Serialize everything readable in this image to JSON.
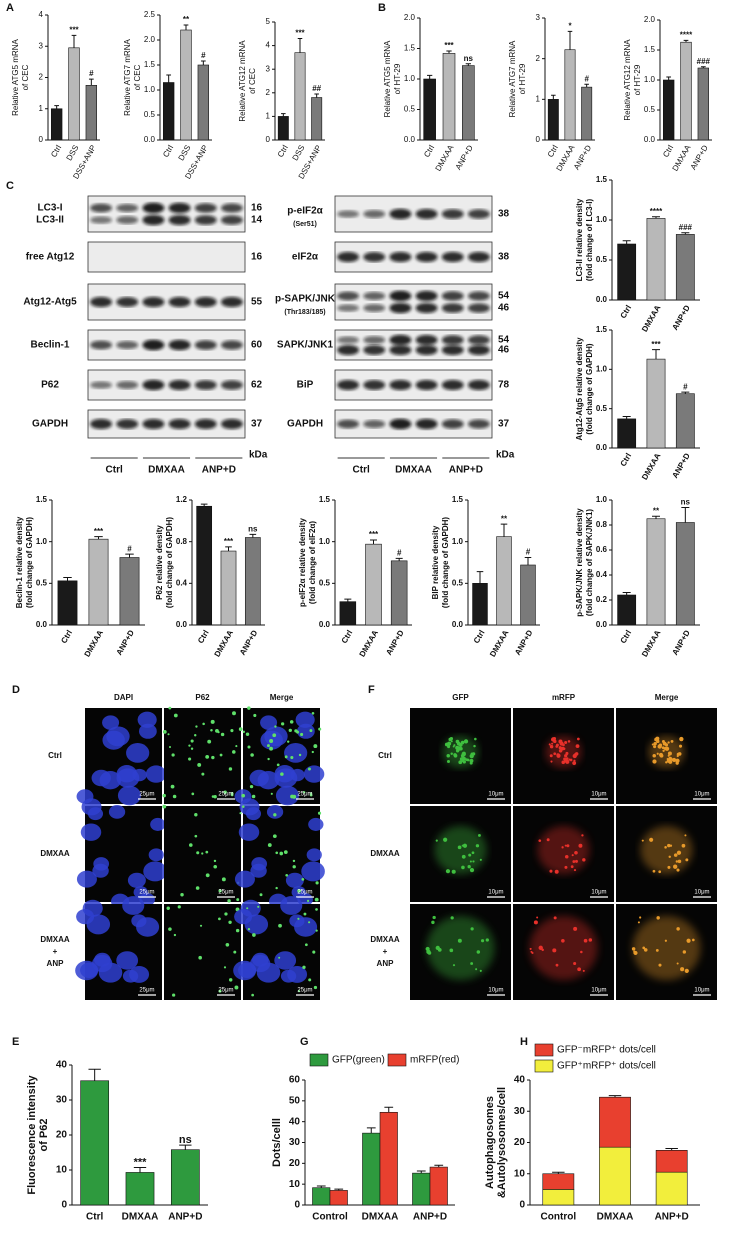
{
  "panel_labels": [
    "A",
    "B",
    "C",
    "D",
    "E",
    "F",
    "G",
    "H"
  ],
  "chart_data": [
    {
      "type": "bar",
      "ylabel": [
        "Relative ATG5 mRNA",
        "of CEC"
      ],
      "categories": [
        "Ctrl",
        "DSS",
        "DSS+ANP"
      ],
      "values": [
        1.0,
        2.95,
        1.75
      ],
      "errors": [
        0.1,
        0.4,
        0.2
      ],
      "significance": [
        null,
        "***",
        "#"
      ],
      "colors": [
        "#1a1a1a",
        "#b8b8b8",
        "#7a7a7a"
      ],
      "ylim": [
        0,
        4
      ],
      "yticks": [
        0,
        1,
        2,
        3,
        4
      ]
    },
    {
      "type": "bar",
      "ylabel": [
        "Relative ATG7 mRNA",
        "of CEC"
      ],
      "categories": [
        "Ctrl",
        "DSS",
        "DSS+ANP"
      ],
      "values": [
        1.15,
        2.2,
        1.5
      ],
      "errors": [
        0.15,
        0.1,
        0.08
      ],
      "significance": [
        null,
        "**",
        "#"
      ],
      "colors": [
        "#1a1a1a",
        "#b8b8b8",
        "#7a7a7a"
      ],
      "ylim": [
        0,
        2.5
      ],
      "yticks": [
        {
          "value": 0,
          "label": "0.0"
        },
        0.5,
        {
          "value": 1,
          "label": "1.0"
        },
        1.5,
        {
          "value": 2,
          "label": "2.0"
        },
        2.5
      ]
    },
    {
      "type": "bar",
      "ylabel": [
        "Relative ATG12 mRNA",
        "of CEC"
      ],
      "categories": [
        "Ctrl",
        "DSS",
        "DSS+ANP"
      ],
      "values": [
        1.0,
        3.7,
        1.8
      ],
      "errors": [
        0.12,
        0.6,
        0.15
      ],
      "significance": [
        null,
        "***",
        "##"
      ],
      "colors": [
        "#1a1a1a",
        "#b8b8b8",
        "#7a7a7a"
      ],
      "ylim": [
        0,
        5
      ],
      "yticks": [
        0,
        1,
        2,
        3,
        4,
        5
      ]
    },
    {
      "type": "bar",
      "ylabel": [
        "Relative ATG5 mRNA",
        "of HT-29"
      ],
      "categories": [
        "Ctrl",
        "DMXAA",
        "ANP+D"
      ],
      "values": [
        1.0,
        1.42,
        1.22
      ],
      "errors": [
        0.06,
        0.04,
        0.03
      ],
      "significance": [
        null,
        "***",
        "ns"
      ],
      "colors": [
        "#1a1a1a",
        "#b8b8b8",
        "#7a7a7a"
      ],
      "ylim": [
        0,
        2
      ],
      "yticks": [
        {
          "value": 0,
          "label": "0.0"
        },
        0.5,
        {
          "value": 1,
          "label": "1.0"
        },
        1.5,
        {
          "value": 2,
          "label": "2.0"
        }
      ]
    },
    {
      "type": "bar",
      "ylabel": [
        "Relative ATG7 mRNA",
        "of HT-29"
      ],
      "categories": [
        "Ctrl",
        "DMXAA",
        "ANP+D"
      ],
      "values": [
        1.0,
        2.22,
        1.3
      ],
      "errors": [
        0.1,
        0.45,
        0.07
      ],
      "significance": [
        null,
        "*",
        "#"
      ],
      "colors": [
        "#1a1a1a",
        "#b8b8b8",
        "#7a7a7a"
      ],
      "ylim": [
        0,
        3
      ],
      "yticks": [
        0,
        1,
        2,
        3
      ]
    },
    {
      "type": "bar",
      "ylabel": [
        "Relative ATG12 mRNA",
        "of HT-29"
      ],
      "categories": [
        "Ctrl",
        "DMXAA",
        "ANP+D"
      ],
      "values": [
        1.0,
        1.63,
        1.2
      ],
      "errors": [
        0.05,
        0.03,
        0.02
      ],
      "significance": [
        null,
        "****",
        "###"
      ],
      "colors": [
        "#1a1a1a",
        "#b8b8b8",
        "#7a7a7a"
      ],
      "ylim": [
        0,
        2
      ],
      "yticks": [
        {
          "value": 0,
          "label": "0.0"
        },
        0.5,
        {
          "value": 1,
          "label": "1.0"
        },
        1.5,
        {
          "value": 2,
          "label": "2.0"
        }
      ]
    },
    {
      "type": "bar",
      "ylabel": [
        "LC3-II relative density",
        "(fold change of LC3-I)"
      ],
      "categories": [
        "Ctrl",
        "DMXAA",
        "ANP+D"
      ],
      "values": [
        0.7,
        1.02,
        0.82
      ],
      "errors": [
        0.04,
        0.02,
        0.02
      ],
      "significance": [
        null,
        "****",
        "###"
      ],
      "colors": [
        "#1a1a1a",
        "#b8b8b8",
        "#7a7a7a"
      ],
      "ylim": [
        0,
        1.5
      ],
      "yticks": [
        {
          "value": 0,
          "label": "0.0"
        },
        0.5,
        {
          "value": 1,
          "label": "1.0"
        },
        1.5
      ]
    },
    {
      "type": "bar",
      "ylabel": [
        "Atg12-Atg5 relative density",
        "(fold change of GAPDH)"
      ],
      "categories": [
        "Ctrl",
        "DMXAA",
        "ANP+D"
      ],
      "values": [
        0.37,
        1.13,
        0.69
      ],
      "errors": [
        0.03,
        0.12,
        0.02
      ],
      "significance": [
        null,
        "***",
        "#"
      ],
      "colors": [
        "#1a1a1a",
        "#b8b8b8",
        "#7a7a7a"
      ],
      "ylim": [
        0,
        1.5
      ],
      "yticks": [
        {
          "value": 0,
          "label": "0.0"
        },
        0.5,
        {
          "value": 1,
          "label": "1.0"
        },
        1.5
      ]
    },
    {
      "type": "bar",
      "ylabel": [
        "Beclin-1 relative density",
        "(fold change of GAPDH)"
      ],
      "categories": [
        "Ctrl",
        "DMXAA",
        "ANP+D"
      ],
      "values": [
        0.53,
        1.03,
        0.81
      ],
      "errors": [
        0.04,
        0.03,
        0.04
      ],
      "significance": [
        null,
        "***",
        "#"
      ],
      "colors": [
        "#1a1a1a",
        "#b8b8b8",
        "#7a7a7a"
      ],
      "ylim": [
        0,
        1.5
      ],
      "yticks": [
        {
          "value": 0,
          "label": "0.0"
        },
        0.5,
        {
          "value": 1,
          "label": "1.0"
        },
        1.5
      ]
    },
    {
      "type": "bar",
      "ylabel": [
        "P62 relative density",
        "(fold change of GAPDH)"
      ],
      "categories": [
        "Ctrl",
        "DMXAA",
        "ANP+D"
      ],
      "values": [
        1.14,
        0.71,
        0.84
      ],
      "errors": [
        0.02,
        0.04,
        0.03
      ],
      "significance": [
        null,
        "***",
        "ns"
      ],
      "colors": [
        "#1a1a1a",
        "#b8b8b8",
        "#7a7a7a"
      ],
      "ylim": [
        0,
        1.2
      ],
      "yticks": [
        {
          "value": 0,
          "label": "0.0"
        },
        0.4,
        0.8,
        1.2
      ]
    },
    {
      "type": "bar",
      "ylabel": [
        "p-eIF2α relative density",
        "(fold change of eIF2α)"
      ],
      "categories": [
        "Ctrl",
        "DMXAA",
        "ANP+D"
      ],
      "values": [
        0.28,
        0.97,
        0.77
      ],
      "errors": [
        0.03,
        0.05,
        0.03
      ],
      "significance": [
        null,
        "***",
        "#"
      ],
      "colors": [
        "#1a1a1a",
        "#b8b8b8",
        "#7a7a7a"
      ],
      "ylim": [
        0,
        1.5
      ],
      "yticks": [
        {
          "value": 0,
          "label": "0.0"
        },
        0.5,
        {
          "value": 1,
          "label": "1.0"
        },
        1.5
      ]
    },
    {
      "type": "bar",
      "ylabel": [
        "BIP relative density",
        "(fold change of GAPDH)"
      ],
      "categories": [
        "Ctrl",
        "DMXAA",
        "ANP+D"
      ],
      "values": [
        0.5,
        1.06,
        0.72
      ],
      "errors": [
        0.14,
        0.15,
        0.09
      ],
      "significance": [
        null,
        "**",
        "#"
      ],
      "colors": [
        "#1a1a1a",
        "#b8b8b8",
        "#7a7a7a"
      ],
      "ylim": [
        0,
        1.5
      ],
      "yticks": [
        {
          "value": 0,
          "label": "0.0"
        },
        0.5,
        {
          "value": 1,
          "label": "1.0"
        },
        1.5
      ]
    },
    {
      "type": "bar",
      "ylabel": [
        "p-SAPK/JNK relative density",
        "(fold change of SAPK/JNK1)"
      ],
      "categories": [
        "Ctrl",
        "DMXAA",
        "ANP+D"
      ],
      "values": [
        0.24,
        0.85,
        0.82
      ],
      "errors": [
        0.02,
        0.02,
        0.12
      ],
      "significance": [
        null,
        "**",
        "ns"
      ],
      "colors": [
        "#1a1a1a",
        "#b8b8b8",
        "#7a7a7a"
      ],
      "ylim": [
        0,
        1
      ],
      "yticks": [
        {
          "value": 0,
          "label": "0.0"
        },
        0.2,
        0.4,
        0.6,
        0.8,
        {
          "value": 1,
          "label": "1.0"
        }
      ]
    },
    {
      "type": "bar",
      "ylabel": [
        "Fluorescence intensity",
        "of P62"
      ],
      "categories": [
        "Ctrl",
        "DMXAA",
        "ANP+D"
      ],
      "values": [
        35.5,
        9.3,
        15.8
      ],
      "errors": [
        3.3,
        1.4,
        1.3
      ],
      "significance": [
        null,
        "***",
        "ns"
      ],
      "colors": [
        "#2e9a3e",
        "#2e9a3e",
        "#2e9a3e"
      ],
      "ylim": [
        0,
        40
      ],
      "yticks": [
        0,
        10,
        20,
        30,
        40
      ]
    },
    {
      "type": "grouped_bar",
      "ylabel": [
        "Dots/celll"
      ],
      "categories": [
        "Control",
        "DMXAA",
        "ANP+D"
      ],
      "legend": "top",
      "ylim": [
        0,
        60
      ],
      "yticks": [
        0,
        10,
        20,
        30,
        40,
        50,
        60
      ],
      "series": [
        {
          "name": "GFP(green)",
          "color": "#2e9a3e",
          "values": [
            8.3,
            34.5,
            15.3
          ],
          "errors": [
            0.8,
            2.5,
            1.0
          ]
        },
        {
          "name": "mRFP(red)",
          "color": "#e8402f",
          "values": [
            7.0,
            44.5,
            18.2
          ],
          "errors": [
            0.6,
            2.4,
            0.9
          ]
        }
      ]
    },
    {
      "type": "stacked_bar",
      "ylabel": [
        "Autophagosomes",
        "&Autolysosomes/cell"
      ],
      "categories": [
        "Control",
        "DMXAA",
        "ANP+D"
      ],
      "legend": "top-left",
      "ylim": [
        0,
        40
      ],
      "yticks": [
        0,
        10,
        20,
        30,
        40
      ],
      "series": [
        {
          "name": "GFP⁺mRFP⁺ dots/cell",
          "color": "#f2ee3c",
          "values": [
            5.0,
            18.5,
            10.5
          ],
          "errors": [
            0.5,
            0.8,
            0.8
          ]
        },
        {
          "name": "GFP⁻mRFP⁺ dots/cell",
          "color": "#e8402f",
          "values": [
            5.0,
            16.0,
            7.0
          ],
          "errors": [
            0.5,
            0.5,
            0.6
          ]
        }
      ]
    }
  ],
  "western_blot": {
    "left": {
      "rows": [
        {
          "labels": [
            "LC3-I",
            "LC3-II"
          ],
          "kda": [
            "16",
            "14"
          ]
        },
        {
          "labels": [
            "free Atg12"
          ],
          "kda": [
            "16"
          ]
        },
        {
          "labels": [
            "Atg12-Atg5"
          ],
          "kda": [
            "55"
          ]
        },
        {
          "labels": [
            "Beclin-1"
          ],
          "kda": [
            "60"
          ]
        },
        {
          "labels": [
            "P62"
          ],
          "kda": [
            "62"
          ]
        },
        {
          "labels": [
            "GAPDH"
          ],
          "kda": [
            "37"
          ]
        }
      ]
    },
    "right": {
      "rows": [
        {
          "labels": [
            "p-eIF2α",
            "(Ser51)"
          ],
          "kda": [
            "38"
          ]
        },
        {
          "labels": [
            "eIF2α"
          ],
          "kda": [
            "38"
          ]
        },
        {
          "labels": [
            "p-SAPK/JNK",
            "(Thr183/185)"
          ],
          "kda": [
            "54",
            "46"
          ]
        },
        {
          "labels": [
            "SAPK/JNK1"
          ],
          "kda": [
            "54",
            "46"
          ]
        },
        {
          "labels": [
            "BiP"
          ],
          "kda": [
            "78"
          ]
        },
        {
          "labels": [
            "GAPDH"
          ],
          "kda": [
            "37"
          ]
        }
      ]
    },
    "groups": [
      "Ctrl",
      "DMXAA",
      "ANP+D"
    ],
    "unit": "kDa"
  },
  "microscopy_d": {
    "columns": [
      "DAPI",
      "P62",
      "Merge"
    ],
    "rows": [
      [
        "Ctrl"
      ],
      [
        "DMXAA"
      ],
      [
        "DMXAA",
        "+",
        "ANP"
      ]
    ],
    "scale_bar": "25μm"
  },
  "microscopy_f": {
    "columns": [
      "GFP",
      "mRFP",
      "Merge"
    ],
    "rows": [
      [
        "Ctrl"
      ],
      [
        "DMXAA"
      ],
      [
        "DMXAA",
        "+",
        "ANP"
      ]
    ],
    "scale_bar": "10μm"
  }
}
